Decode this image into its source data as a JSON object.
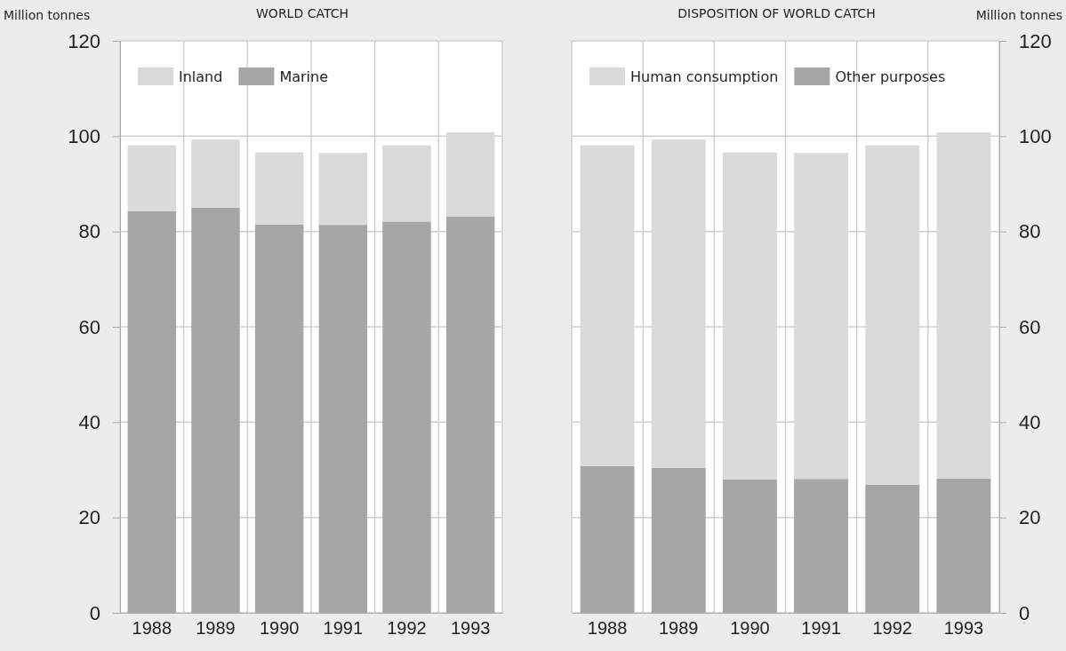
{
  "chart_data": [
    {
      "type": "bar",
      "title": "WORLD CATCH",
      "ylabel": "Million tonnes",
      "categories": [
        "1988",
        "1989",
        "1990",
        "1991",
        "1992",
        "1993"
      ],
      "stacked": true,
      "series": [
        {
          "name": "Marine",
          "color": "#a6a6a6",
          "values": [
            84.3,
            85.0,
            81.5,
            81.4,
            82.1,
            83.1
          ]
        },
        {
          "name": "Inland",
          "color": "#dadada",
          "values": [
            13.8,
            14.3,
            15.1,
            15.1,
            16.0,
            17.7
          ]
        }
      ],
      "ylim": [
        0,
        120
      ],
      "yticks": [
        0,
        20,
        40,
        60,
        80,
        100,
        120
      ],
      "grid": true,
      "legend": "top left"
    },
    {
      "type": "bar",
      "title": "DISPOSITION OF WORLD CATCH",
      "ylabel": "Million tonnes",
      "categories": [
        "1988",
        "1989",
        "1990",
        "1991",
        "1992",
        "1993"
      ],
      "stacked": true,
      "series": [
        {
          "name": "Other purposes",
          "color": "#a6a6a6",
          "values": [
            30.8,
            30.4,
            28.0,
            28.1,
            26.9,
            28.2
          ]
        },
        {
          "name": "Human consumption",
          "color": "#dadada",
          "values": [
            67.3,
            68.9,
            68.6,
            68.4,
            71.2,
            72.6
          ]
        }
      ],
      "ylim": [
        0,
        120
      ],
      "yticks": [
        0,
        20,
        40,
        60,
        80,
        100,
        120
      ],
      "grid": true,
      "legend": "top left"
    }
  ]
}
